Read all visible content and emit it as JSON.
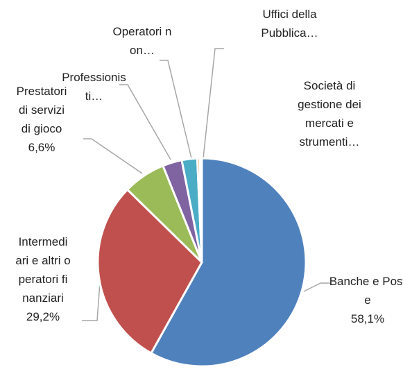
{
  "chart_data": {
    "type": "pie",
    "categories": [
      "Banche e Poste",
      "Intermediari e altri operatori finanziari",
      "Prestatori di servizi di gioco",
      "Professionisti…",
      "Operatori non…",
      "Uffici della Pubblica…",
      "Società di gestione dei mercati e strumenti…"
    ],
    "values": [
      58.1,
      29.2,
      6.6,
      3.0,
      2.4,
      0.4,
      0.3
    ],
    "value_labels": [
      "58,1%",
      "29,2%",
      "6,6%",
      null,
      null,
      null,
      null
    ],
    "colors": [
      "#4f81bd",
      "#c0504d",
      "#9bbb59",
      "#8064a2",
      "#4bacc6",
      "#f79646",
      "#2c4d75"
    ]
  }
}
